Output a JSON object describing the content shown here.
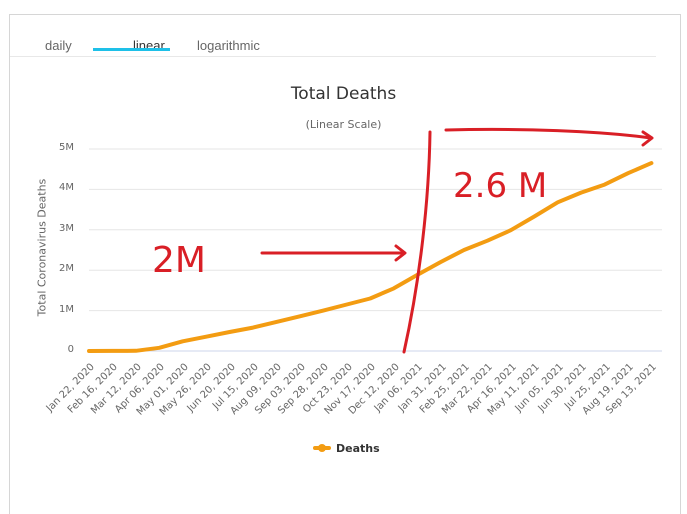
{
  "tabs": [
    {
      "label": "daily",
      "active": false
    },
    {
      "label": "linear",
      "active": true
    },
    {
      "label": "logarithmic",
      "active": false
    }
  ],
  "colors": {
    "series": "#f39c12",
    "tab_underline": "#1ec0e8",
    "annotation": "#d91f26",
    "gridline": "#e6e6e6"
  },
  "chart_data": {
    "type": "line",
    "title": "Total Deaths",
    "subtitle": "(Linear Scale)",
    "xlabel": "",
    "ylabel": "Total Coronavirus Deaths",
    "ylim": [
      0,
      5000000
    ],
    "yticks": [
      "0",
      "1M",
      "2M",
      "3M",
      "4M",
      "5M"
    ],
    "grid": true,
    "legend_position": "bottom-center",
    "categories": [
      "Jan 22, 2020",
      "Feb 16, 2020",
      "Mar 12, 2020",
      "Apr 06, 2020",
      "May 01, 2020",
      "May 26, 2020",
      "Jun 20, 2020",
      "Jul 15, 2020",
      "Aug 09, 2020",
      "Sep 03, 2020",
      "Sep 28, 2020",
      "Oct 23, 2020",
      "Nov 17, 2020",
      "Dec 12, 2020",
      "Jan 06, 2021",
      "Jan 31, 2021",
      "Feb 25, 2021",
      "Mar 22, 2021",
      "Apr 16, 2021",
      "May 11, 2021",
      "Jun 05, 2021",
      "Jun 30, 2021",
      "Jul 25, 2021",
      "Aug 19, 2021",
      "Sep 13, 2021"
    ],
    "series": [
      {
        "name": "Deaths",
        "values": [
          0,
          2000,
          5000,
          80000,
          240000,
          355000,
          470000,
          580000,
          720000,
          860000,
          1000000,
          1150000,
          1300000,
          1550000,
          1880000,
          2200000,
          2500000,
          2730000,
          2990000,
          3330000,
          3680000,
          3920000,
          4120000,
          4400000,
          4650000
        ]
      }
    ],
    "annotations": [
      {
        "text": "2M",
        "type": "handwritten",
        "arrow": "right, pointing at ~Jan 06 2021 crossing"
      },
      {
        "text": "2.6 M",
        "type": "handwritten",
        "arrow": "right, spanning Jan 2021 to Sep 2021"
      },
      {
        "type": "vertical-line",
        "at": "Jan 06, 2021"
      }
    ]
  },
  "legend": {
    "label": "Deaths"
  }
}
